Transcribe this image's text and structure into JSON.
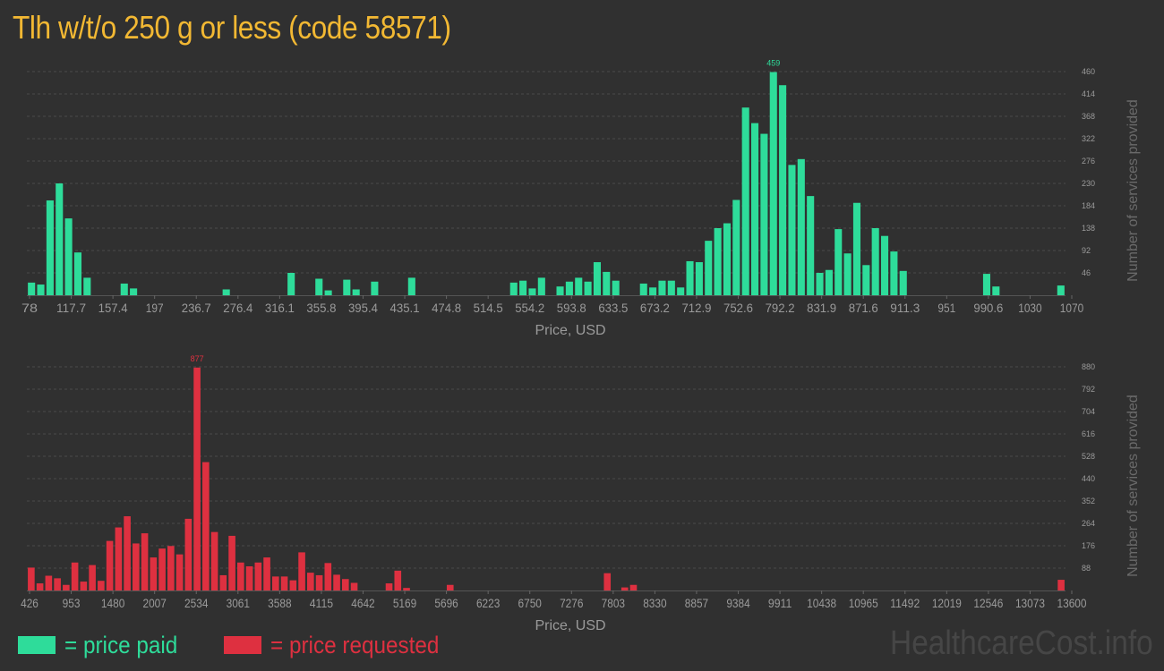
{
  "title": "Tlh w/t/o 250 g or less (code 58571)",
  "colors": {
    "background": "#303030",
    "title": "#f2b833",
    "paid": "#2edc9a",
    "requested": "#de3040",
    "axis_text": "#9a9a9a",
    "grid": "#4a4a4a"
  },
  "legend": {
    "paid_label": "= price paid",
    "requested_label": "= price requested"
  },
  "watermark": "HealthcareCost.info",
  "chart_data": [
    {
      "type": "bar",
      "title": "price paid",
      "xlabel": "Price, USD",
      "ylabel": "Number of services provided",
      "x_tick_labels": [
        "78",
        "117.7",
        "157.4",
        "197",
        "236.7",
        "276.4",
        "316.1",
        "355.8",
        "395.4",
        "435.1",
        "474.8",
        "514.5",
        "554.2",
        "593.8",
        "633.5",
        "673.2",
        "712.9",
        "752.6",
        "792.2",
        "831.9",
        "871.6",
        "911.3",
        "951",
        "990.6",
        "1030",
        "1070"
      ],
      "y_ticks": [
        46,
        92,
        138,
        184,
        230,
        276,
        322,
        368,
        414,
        460
      ],
      "ylim": [
        0,
        460
      ],
      "peak_label": "459",
      "values": [
        26,
        22,
        195,
        230,
        158,
        88,
        36,
        0,
        0,
        0,
        24,
        14,
        0,
        0,
        0,
        0,
        0,
        0,
        0,
        0,
        0,
        12,
        0,
        0,
        0,
        0,
        0,
        0,
        46,
        0,
        0,
        34,
        10,
        0,
        32,
        12,
        0,
        28,
        0,
        0,
        0,
        36,
        0,
        0,
        0,
        0,
        0,
        0,
        0,
        0,
        0,
        0,
        26,
        30,
        14,
        36,
        0,
        18,
        28,
        36,
        28,
        68,
        48,
        30,
        0,
        0,
        24,
        16,
        30,
        30,
        16,
        70,
        68,
        112,
        138,
        148,
        196,
        386,
        354,
        332,
        459,
        432,
        268,
        280,
        204,
        46,
        52,
        136,
        86,
        190,
        62,
        138,
        122,
        90,
        50,
        0,
        0,
        0,
        0,
        0,
        0,
        0,
        0,
        44,
        18,
        0,
        0,
        0,
        0,
        0,
        0,
        20
      ]
    },
    {
      "type": "bar",
      "title": "price requested",
      "xlabel": "Price, USD",
      "ylabel": "Number of services provided",
      "x_tick_labels": [
        "426",
        "953",
        "1480",
        "2007",
        "2534",
        "3061",
        "3588",
        "4115",
        "4642",
        "5169",
        "5696",
        "6223",
        "6750",
        "7276",
        "7803",
        "8330",
        "8857",
        "9384",
        "9911",
        "10438",
        "10965",
        "11492",
        "12019",
        "12546",
        "13073",
        "13600"
      ],
      "y_ticks": [
        88,
        176,
        264,
        352,
        440,
        528,
        616,
        704,
        792,
        880
      ],
      "ylim": [
        0,
        880
      ],
      "peak_label": "877",
      "values": [
        90,
        28,
        58,
        48,
        22,
        110,
        35,
        100,
        38,
        195,
        248,
        292,
        185,
        225,
        130,
        165,
        175,
        142,
        282,
        877,
        505,
        230,
        60,
        215,
        110,
        95,
        110,
        130,
        55,
        55,
        40,
        150,
        70,
        60,
        108,
        62,
        45,
        30,
        0,
        0,
        0,
        28,
        78,
        10,
        0,
        0,
        0,
        0,
        22,
        0,
        0,
        0,
        0,
        0,
        0,
        0,
        0,
        0,
        0,
        0,
        0,
        0,
        0,
        0,
        0,
        0,
        68,
        0,
        12,
        22,
        0,
        0,
        0,
        0,
        0,
        0,
        0,
        0,
        0,
        0,
        0,
        0,
        0,
        0,
        0,
        0,
        0,
        0,
        0,
        0,
        0,
        0,
        0,
        0,
        0,
        0,
        0,
        0,
        0,
        0,
        0,
        0,
        0,
        0,
        0,
        0,
        0,
        0,
        0,
        0,
        0,
        0,
        0,
        0,
        0,
        0,
        0,
        0,
        42
      ]
    }
  ]
}
